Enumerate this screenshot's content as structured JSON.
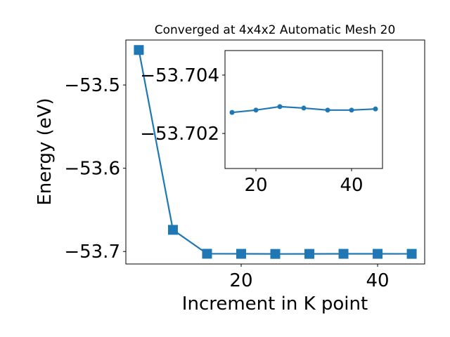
{
  "chart_data": [
    {
      "type": "line",
      "title": "Converged at 4x4x2 Automatic Mesh 20",
      "x_label": "Increment in K point",
      "y_label": "Energy (eV)",
      "x": [
        5,
        10,
        15,
        20,
        25,
        30,
        35,
        40,
        45
      ],
      "series": [
        {
          "color": "#1f77b4",
          "marker": "square",
          "values": [
            -53.458,
            -53.674,
            -53.70272,
            -53.7028,
            -53.70292,
            -53.70287,
            -53.7028,
            -53.7028,
            -53.70284
          ]
        }
      ],
      "xlim": [
        3.1,
        46.9
      ],
      "xticks": [
        20,
        40
      ],
      "ylim": [
        -53.715,
        -53.446
      ],
      "yticks": [
        {
          "value": -53.7,
          "label": "−53.7"
        },
        {
          "value": -53.6,
          "label": "−53.6"
        },
        {
          "value": -53.5,
          "label": "−53.5"
        }
      ]
    },
    {
      "type": "line",
      "x": [
        15,
        20,
        25,
        30,
        35,
        40,
        45
      ],
      "series": [
        {
          "color": "#1f77b4",
          "marker": "circle",
          "values": [
            -53.70272,
            -53.7028,
            -53.70292,
            -53.70287,
            -53.7028,
            -53.7028,
            -53.70284
          ]
        }
      ],
      "xlim": [
        13.53,
        46.47
      ],
      "xticks": [
        20,
        40
      ],
      "ylim": [
        -53.7008,
        -53.70484
      ],
      "yticks": [
        {
          "value": -53.702,
          "label": "−53.702"
        },
        {
          "value": -53.704,
          "label": "−53.704"
        }
      ]
    }
  ]
}
